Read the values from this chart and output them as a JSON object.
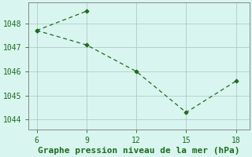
{
  "line1_x": [
    6,
    9
  ],
  "line1_y": [
    1047.7,
    1048.5
  ],
  "line2_x": [
    6,
    9,
    12,
    15,
    18
  ],
  "line2_y": [
    1047.7,
    1047.1,
    1046.0,
    1044.3,
    1045.6
  ],
  "xlim": [
    5.5,
    18.8
  ],
  "ylim": [
    1043.6,
    1048.85
  ],
  "xticks": [
    6,
    9,
    12,
    15,
    18
  ],
  "yticks": [
    1044,
    1045,
    1046,
    1047,
    1048
  ],
  "xlabel": "Graphe pression niveau de la mer (hPa)",
  "line_color": "#1f6b1f",
  "marker_color": "#1f6b1f",
  "bg_color": "#d8f5ef",
  "grid_color": "#b0ccc8",
  "tick_label_color": "#1f6b1f",
  "xlabel_color": "#1f6b1f",
  "tick_fontsize": 7,
  "xlabel_fontsize": 8
}
